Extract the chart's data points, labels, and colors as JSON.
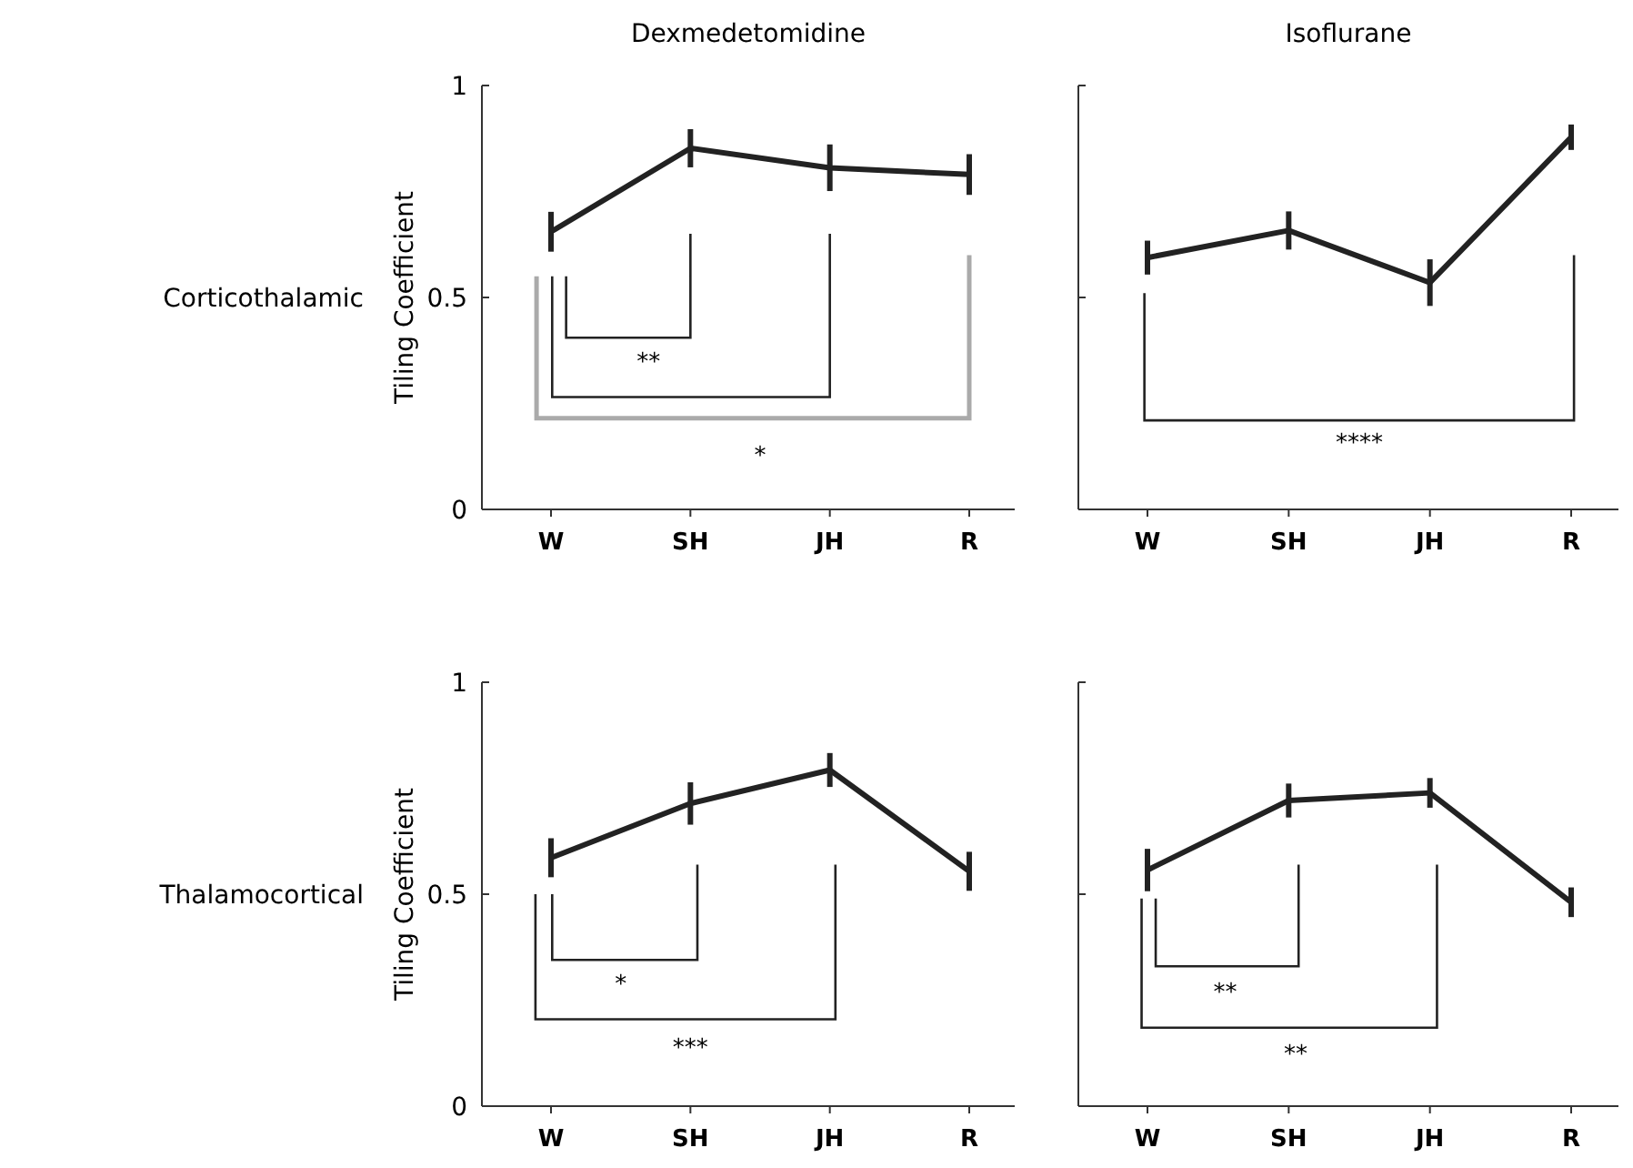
{
  "chart_data": [
    {
      "type": "line",
      "title": "Dexmedetomidine",
      "ylabel": "Tiling Coefficient",
      "categories": [
        "W",
        "SH",
        "JH",
        "R"
      ],
      "series": [
        {
          "color": "#222222",
          "values": [
            0.655,
            0.852,
            0.806,
            0.79
          ],
          "errors": [
            0.047,
            0.045,
            0.055,
            0.048
          ]
        }
      ],
      "ylim": [
        0,
        1
      ],
      "yticks": [
        0,
        0.5,
        1
      ],
      "annotations": [
        "Corticothalamic",
        "**",
        "*"
      ],
      "grid": false,
      "marker": "none"
    },
    {
      "type": "line",
      "title": "Isoflurane",
      "categories": [
        "W",
        "SH",
        "JH",
        "R"
      ],
      "series": [
        {
          "color": "#222222",
          "values": [
            0.594,
            0.658,
            0.535,
            0.878
          ],
          "errors": [
            0.04,
            0.045,
            0.055,
            0.03
          ]
        }
      ],
      "ylim": [
        0,
        1
      ],
      "yticks": [
        {
          "value": 0,
          "label": null
        },
        {
          "value": 0.5,
          "label": null
        },
        {
          "value": 1,
          "label": null
        }
      ],
      "annotations": [
        "****"
      ],
      "tick_labels": "x",
      "grid": false,
      "marker": "none"
    },
    {
      "type": "line",
      "ylabel": "Tiling Coefficient",
      "categories": [
        "W",
        "SH",
        "JH",
        "R"
      ],
      "series": [
        {
          "color": "#222222",
          "values": [
            0.586,
            0.714,
            0.793,
            0.554
          ],
          "errors": [
            0.046,
            0.05,
            0.04,
            0.046
          ]
        }
      ],
      "ylim": [
        0,
        1
      ],
      "yticks": [
        0,
        0.5,
        1
      ],
      "annotations": [
        "Thalamocortical",
        "*",
        "***"
      ],
      "grid": false,
      "marker": "none"
    },
    {
      "type": "line",
      "categories": [
        "W",
        "SH",
        "JH",
        "R"
      ],
      "series": [
        {
          "color": "#222222",
          "values": [
            0.557,
            0.721,
            0.739,
            0.481
          ],
          "errors": [
            0.05,
            0.04,
            0.035,
            0.035
          ]
        }
      ],
      "ylim": [
        0,
        1
      ],
      "yticks": [
        {
          "value": 0,
          "label": null
        },
        {
          "value": 0.5,
          "label": null
        },
        {
          "value": 1,
          "label": null
        }
      ],
      "annotations": [
        "**",
        "**"
      ],
      "tick_labels": "x",
      "grid": false,
      "marker": "none"
    }
  ]
}
